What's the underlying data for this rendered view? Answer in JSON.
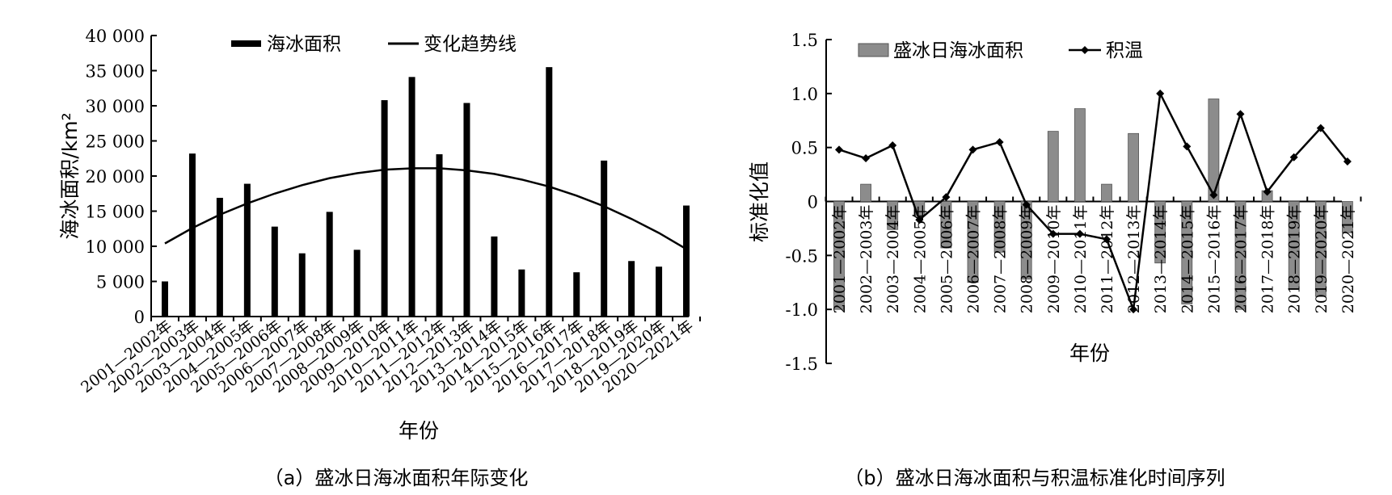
{
  "chart_data": [
    {
      "type": "bar",
      "caption": "（a）盛冰日海冰面积年际变化",
      "xlabel": "年份",
      "ylabel": "海冰面积/km²",
      "ylim": [
        0,
        40000
      ],
      "yticks": [
        "0",
        "5 000",
        "10 000",
        "15 000",
        "20 000",
        "25 000",
        "30 000",
        "35 000",
        "40 000"
      ],
      "categories": [
        "2001—2002年",
        "2002—2003年",
        "2003—2004年",
        "2004—2005年",
        "2005—2006年",
        "2006—2007年",
        "2007—2008年",
        "2008—2009年",
        "2009—2010年",
        "2010—2011年",
        "2011—2012年",
        "2012—2013年",
        "2013—2014年",
        "2014—2015年",
        "2015—2016年",
        "2016—2017年",
        "2017—2018年",
        "2018—2019年",
        "2019—2020年",
        "2020—2021年"
      ],
      "legend": [
        {
          "name": "海冰面积",
          "type": "bar"
        },
        {
          "name": "变化趋势线",
          "type": "line"
        }
      ],
      "series": [
        {
          "name": "海冰面积",
          "type": "bar",
          "color": "#000000",
          "values": [
            5000,
            23200,
            16900,
            18900,
            12800,
            9000,
            14900,
            9500,
            30800,
            34100,
            23100,
            30400,
            11400,
            6700,
            35500,
            6300,
            22200,
            7900,
            7100,
            15800
          ]
        },
        {
          "name": "变化趋势线",
          "type": "line",
          "color": "#000000",
          "values": [
            10400,
            12600,
            14500,
            16100,
            17500,
            18700,
            19700,
            20400,
            20900,
            21100,
            21100,
            20800,
            20300,
            19500,
            18500,
            17200,
            15700,
            13900,
            11900,
            9600
          ]
        }
      ]
    },
    {
      "type": "bar+line",
      "caption": "（b）盛冰日海冰面积与积温标准化时间序列",
      "xlabel": "年份",
      "ylabel": "标准化值",
      "ylim": [
        -1.5,
        1.5
      ],
      "yticks": [
        "1.5",
        "1.0",
        "0.5",
        "0",
        "-0.5",
        "-1.0",
        "-1.5"
      ],
      "categories": [
        "2001—2002年",
        "2002—2003年",
        "2003—2004年",
        "2004—2005年",
        "2005—2006年",
        "2006—2007年",
        "2007—2008年",
        "2008—2009年",
        "2009—2010年",
        "2010—2011年",
        "2011—2012年",
        "2012—2013年",
        "2013—2014年",
        "2014—2015年",
        "2015—2016年",
        "2016—2017年",
        "2017—2018年",
        "2018—2019年",
        "2019—2020年",
        "2020—2021年"
      ],
      "legend": [
        {
          "name": "盛冰日海冰面积",
          "type": "bar"
        },
        {
          "name": "积温",
          "type": "line"
        }
      ],
      "series": [
        {
          "name": "盛冰日海冰面积",
          "type": "bar",
          "color": "#8c8c8c",
          "values": [
            -1.0,
            0.16,
            -0.26,
            -0.13,
            -0.43,
            -0.75,
            -0.47,
            -0.72,
            0.65,
            0.86,
            0.16,
            0.63,
            -0.57,
            -0.95,
            0.95,
            -1.0,
            0.1,
            -0.81,
            -0.88,
            -0.29
          ]
        },
        {
          "name": "积温",
          "type": "line",
          "color": "#000000",
          "values": [
            0.48,
            0.4,
            0.52,
            -0.17,
            0.04,
            0.48,
            0.55,
            -0.03,
            -0.3,
            -0.3,
            -0.35,
            -1.0,
            1.0,
            0.51,
            0.06,
            0.81,
            0.09,
            0.41,
            0.68,
            0.37
          ]
        }
      ]
    }
  ]
}
